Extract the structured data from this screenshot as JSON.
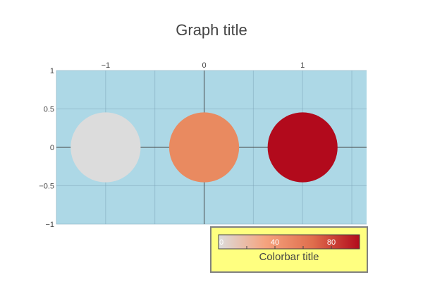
{
  "chart_data": {
    "type": "scatter",
    "title": "Graph title",
    "x": [
      -1,
      0,
      1
    ],
    "y": [
      0,
      0,
      0
    ],
    "color_values": [
      0,
      50,
      100
    ],
    "marker_colors": [
      "#DCDCDC",
      "#E98A60",
      "#B20A1C"
    ],
    "xlim": [
      -1.5,
      1.65
    ],
    "ylim": [
      -1,
      1
    ],
    "x_ticks": [
      -1,
      0,
      1
    ],
    "x_tick_labels": [
      "−1",
      "0",
      "1"
    ],
    "y_ticks": [
      1,
      0.5,
      0,
      -0.5,
      -1
    ],
    "y_tick_labels": [
      "1",
      "0.5",
      "0",
      "−0.5",
      "−1"
    ],
    "x_axis_side": "top",
    "grid": true,
    "zerolines": true,
    "plot_bgcolor": "#ADD8E6",
    "colorbar": {
      "title": "Colorbar title",
      "ticks": [
        0,
        40,
        80
      ],
      "tick_labels": [
        "0",
        "40",
        "80"
      ],
      "range": [
        0,
        100
      ],
      "colorscale": [
        "#DCDCDC",
        "#F5A37E",
        "#E06E4D",
        "#B20A1C"
      ],
      "orientation": "horizontal",
      "bgcolor": "#FFFF80",
      "bordercolor": "#808080",
      "position": "bottom-right"
    }
  }
}
